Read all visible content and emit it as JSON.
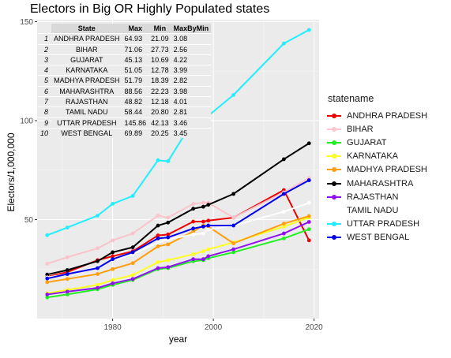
{
  "title": "Electors in Big OR Highly Populated states",
  "chart_data": {
    "type": "line",
    "title": "Electors in Big OR Highly Populated states",
    "xlabel": "year",
    "ylabel": "Electors/1,000,000",
    "xlim": [
      1965,
      2021
    ],
    "ylim": [
      0,
      151
    ],
    "x_ticks": [
      1980,
      2000,
      2020
    ],
    "y_ticks": [
      50,
      100,
      150
    ],
    "grid": true,
    "legend_title": "statename",
    "legend_position": "right",
    "series": [
      {
        "name": "ANDHRA PRADESH",
        "color": "#ee0000",
        "x": [
          1967,
          1971,
          1977,
          1980,
          1984,
          1989,
          1991,
          1996,
          1998,
          1999,
          2004,
          2014,
          2019
        ],
        "y": [
          21.09,
          23.5,
          29.5,
          31.5,
          34.0,
          42.0,
          42.5,
          49.0,
          49.0,
          49.5,
          51.0,
          64.93,
          39.5
        ]
      },
      {
        "name": "BIHAR",
        "color": "#f9c4cc",
        "x": [
          1967,
          1971,
          1977,
          1980,
          1984,
          1989,
          1991,
          1996,
          1998,
          1999,
          2004,
          2014,
          2019
        ],
        "y": [
          27.73,
          31.0,
          35.5,
          39.5,
          43.0,
          52.0,
          51.0,
          58.0,
          58.5,
          58.5,
          51.0,
          63.8,
          71.06
        ]
      },
      {
        "name": "GUJARAT",
        "color": "#22ee22",
        "x": [
          1967,
          1971,
          1977,
          1980,
          1984,
          1989,
          1991,
          1996,
          1998,
          1999,
          2004,
          2014,
          2019
        ],
        "y": [
          10.69,
          12.2,
          14.8,
          17.0,
          19.5,
          25.0,
          25.5,
          29.0,
          29.5,
          30.5,
          33.5,
          40.5,
          45.13
        ]
      },
      {
        "name": "KARNATAKA",
        "color": "#ffff22",
        "x": [
          1967,
          1971,
          1977,
          1980,
          1984,
          1989,
          1991,
          1996,
          1998,
          1999,
          2004,
          2014,
          2019
        ],
        "y": [
          12.78,
          14.5,
          17.0,
          19.5,
          22.0,
          28.5,
          29.5,
          32.5,
          34.0,
          35.0,
          38.5,
          46.5,
          51.05
        ]
      },
      {
        "name": "MADHYA PRADESH",
        "color": "#ff9f10",
        "x": [
          1967,
          1971,
          1977,
          1980,
          1984,
          1989,
          1991,
          1996,
          1998,
          1999,
          2004,
          2014,
          2019
        ],
        "y": [
          18.39,
          20.0,
          22.5,
          25.0,
          28.0,
          36.5,
          37.5,
          44.0,
          47.0,
          46.5,
          38.0,
          48.0,
          51.79
        ]
      },
      {
        "name": "MAHARASHTRA",
        "color": "#000000",
        "x": [
          1967,
          1971,
          1977,
          1980,
          1984,
          1989,
          1991,
          1996,
          1998,
          1999,
          2004,
          2014,
          2019
        ],
        "y": [
          22.23,
          24.5,
          29.0,
          33.5,
          36.0,
          47.0,
          48.5,
          55.5,
          56.5,
          57.5,
          63.0,
          80.5,
          88.56
        ]
      },
      {
        "name": "RAJASTHAN",
        "color": "#9010ee",
        "x": [
          1967,
          1971,
          1977,
          1980,
          1984,
          1989,
          1991,
          1996,
          1998,
          1999,
          2004,
          2014,
          2019
        ],
        "y": [
          12.18,
          13.6,
          15.5,
          17.8,
          20.0,
          25.5,
          26.0,
          30.0,
          30.0,
          31.5,
          35.0,
          43.0,
          48.82
        ]
      },
      {
        "name": "TAMIL NADU",
        "color": "#ffffff",
        "x": [
          1967,
          1971,
          1977,
          1980,
          1984,
          1989,
          1991,
          1996,
          1998,
          1999,
          2004,
          2014,
          2019
        ],
        "y": [
          20.8,
          22.5,
          26.0,
          29.5,
          32.5,
          38.5,
          40.0,
          42.5,
          43.0,
          45.0,
          47.0,
          54.0,
          58.44
        ]
      },
      {
        "name": "UTTAR PRADESH",
        "color": "#22eeff",
        "x": [
          1967,
          1971,
          1977,
          1980,
          1984,
          1989,
          1991,
          1996,
          1998,
          1999,
          2004,
          2014,
          2019
        ],
        "y": [
          42.13,
          46.0,
          52.0,
          58.0,
          62.0,
          80.0,
          79.5,
          100.0,
          101.5,
          102.5,
          113.0,
          139.0,
          145.86
        ]
      },
      {
        "name": "WEST BENGAL",
        "color": "#0000ee",
        "x": [
          1967,
          1971,
          1977,
          1980,
          1984,
          1989,
          1991,
          1996,
          1998,
          1999,
          2004,
          2014,
          2019
        ],
        "y": [
          20.25,
          22.5,
          25.5,
          30.0,
          33.5,
          40.5,
          41.0,
          45.5,
          46.5,
          47.0,
          47.0,
          63.0,
          69.89
        ]
      }
    ]
  },
  "table": {
    "headers": [
      "State",
      "Max",
      "Min",
      "MaxByMin"
    ],
    "rows": [
      {
        "idx": "1",
        "state": "ANDHRA PRADESH",
        "max": "64.93",
        "min": "21.09",
        "ratio": "3.08"
      },
      {
        "idx": "2",
        "state": "BIHAR",
        "max": "71.06",
        "min": "27.73",
        "ratio": "2.56"
      },
      {
        "idx": "3",
        "state": "GUJARAT",
        "max": "45.13",
        "min": "10.69",
        "ratio": "4.22"
      },
      {
        "idx": "4",
        "state": "KARNATAKA",
        "max": "51.05",
        "min": "12.78",
        "ratio": "3.99"
      },
      {
        "idx": "5",
        "state": "MADHYA PRADESH",
        "max": "51.79",
        "min": "18.39",
        "ratio": "2.82"
      },
      {
        "idx": "6",
        "state": "MAHARASHTRA",
        "max": "88.56",
        "min": "22.23",
        "ratio": "3.98"
      },
      {
        "idx": "7",
        "state": "RAJASTHAN",
        "max": "48.82",
        "min": "12.18",
        "ratio": "4.01"
      },
      {
        "idx": "8",
        "state": "TAMIL NADU",
        "max": "58.44",
        "min": "20.80",
        "ratio": "2.81"
      },
      {
        "idx": "9",
        "state": "UTTAR PRADESH",
        "max": "145.86",
        "min": "42.13",
        "ratio": "3.46"
      },
      {
        "idx": "10",
        "state": "WEST BENGAL",
        "max": "69.89",
        "min": "20.25",
        "ratio": "3.45"
      }
    ]
  }
}
